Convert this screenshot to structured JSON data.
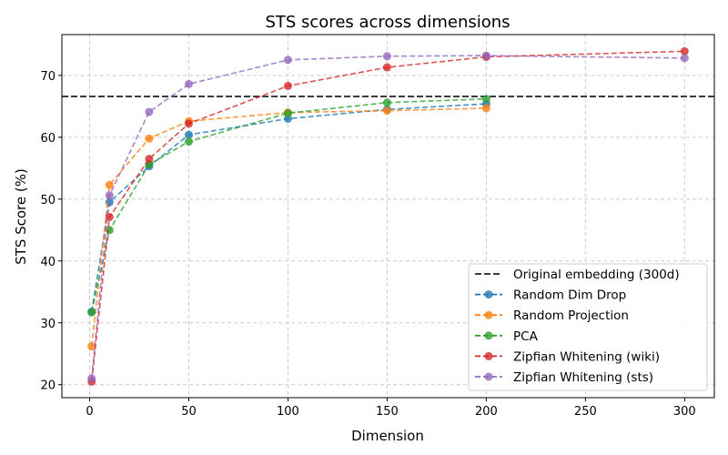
{
  "chart_data": {
    "type": "line",
    "title": "STS scores across dimensions",
    "xlabel": "Dimension",
    "ylabel": "STS Score (%)",
    "xlim": [
      -14,
      315
    ],
    "ylim": [
      17.9,
      76.6
    ],
    "xticks": [
      0,
      50,
      100,
      150,
      200,
      250,
      300
    ],
    "yticks": [
      20,
      30,
      40,
      50,
      60,
      70
    ],
    "grid": true,
    "legend_position": "lower-right",
    "reference_line": {
      "name": "Original embedding (300d)",
      "y": 66.6,
      "color": "#222222"
    },
    "series": [
      {
        "name": "Random Dim Drop",
        "color": "#1f77b4",
        "x": [
          1,
          10,
          30,
          50,
          100,
          150,
          200
        ],
        "y": [
          31.8,
          49.5,
          55.3,
          60.4,
          63.0,
          64.5,
          65.4
        ]
      },
      {
        "name": "Random Projection",
        "color": "#ff7f0e",
        "x": [
          1,
          10,
          30,
          50,
          100,
          150,
          200
        ],
        "y": [
          26.2,
          52.3,
          59.8,
          62.6,
          64.0,
          64.3,
          64.7
        ]
      },
      {
        "name": "PCA",
        "color": "#2ca02c",
        "x": [
          1,
          10,
          30,
          50,
          100,
          150,
          200
        ],
        "y": [
          31.7,
          45.0,
          55.6,
          59.3,
          63.9,
          65.6,
          66.2
        ]
      },
      {
        "name": "Zipfian Whitening (wiki)",
        "color": "#d62728",
        "x": [
          1,
          10,
          30,
          50,
          100,
          150,
          200,
          300
        ],
        "y": [
          20.5,
          47.1,
          56.5,
          62.2,
          68.3,
          71.3,
          73.0,
          73.9
        ]
      },
      {
        "name": "Zipfian Whitening (sts)",
        "color": "#9467bd",
        "x": [
          1,
          10,
          30,
          50,
          100,
          150,
          200,
          300
        ],
        "y": [
          21.0,
          50.6,
          64.1,
          68.6,
          72.5,
          73.1,
          73.2,
          72.8
        ]
      }
    ]
  }
}
